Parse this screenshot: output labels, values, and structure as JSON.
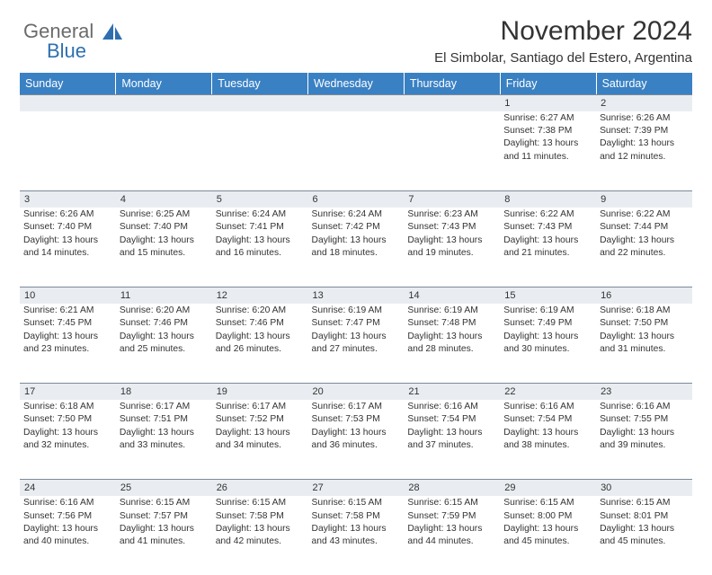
{
  "brand": {
    "part1": "General",
    "part2": "Blue"
  },
  "title": "November 2024",
  "subtitle": "El Simbolar, Santiago del Estero, Argentina",
  "colors": {
    "header_bg": "#3a81c4",
    "header_fg": "#ffffff",
    "daynum_bg": "#e9edf1",
    "daynum_border": "#7b8a99",
    "text": "#333333",
    "brand_grey": "#6b6b6b",
    "brand_blue": "#2f6fb0"
  },
  "weekdays": [
    "Sunday",
    "Monday",
    "Tuesday",
    "Wednesday",
    "Thursday",
    "Friday",
    "Saturday"
  ],
  "weeks": [
    [
      null,
      null,
      null,
      null,
      null,
      {
        "n": "1",
        "sr": "Sunrise: 6:27 AM",
        "ss": "Sunset: 7:38 PM",
        "d1": "Daylight: 13 hours",
        "d2": "and 11 minutes."
      },
      {
        "n": "2",
        "sr": "Sunrise: 6:26 AM",
        "ss": "Sunset: 7:39 PM",
        "d1": "Daylight: 13 hours",
        "d2": "and 12 minutes."
      }
    ],
    [
      {
        "n": "3",
        "sr": "Sunrise: 6:26 AM",
        "ss": "Sunset: 7:40 PM",
        "d1": "Daylight: 13 hours",
        "d2": "and 14 minutes."
      },
      {
        "n": "4",
        "sr": "Sunrise: 6:25 AM",
        "ss": "Sunset: 7:40 PM",
        "d1": "Daylight: 13 hours",
        "d2": "and 15 minutes."
      },
      {
        "n": "5",
        "sr": "Sunrise: 6:24 AM",
        "ss": "Sunset: 7:41 PM",
        "d1": "Daylight: 13 hours",
        "d2": "and 16 minutes."
      },
      {
        "n": "6",
        "sr": "Sunrise: 6:24 AM",
        "ss": "Sunset: 7:42 PM",
        "d1": "Daylight: 13 hours",
        "d2": "and 18 minutes."
      },
      {
        "n": "7",
        "sr": "Sunrise: 6:23 AM",
        "ss": "Sunset: 7:43 PM",
        "d1": "Daylight: 13 hours",
        "d2": "and 19 minutes."
      },
      {
        "n": "8",
        "sr": "Sunrise: 6:22 AM",
        "ss": "Sunset: 7:43 PM",
        "d1": "Daylight: 13 hours",
        "d2": "and 21 minutes."
      },
      {
        "n": "9",
        "sr": "Sunrise: 6:22 AM",
        "ss": "Sunset: 7:44 PM",
        "d1": "Daylight: 13 hours",
        "d2": "and 22 minutes."
      }
    ],
    [
      {
        "n": "10",
        "sr": "Sunrise: 6:21 AM",
        "ss": "Sunset: 7:45 PM",
        "d1": "Daylight: 13 hours",
        "d2": "and 23 minutes."
      },
      {
        "n": "11",
        "sr": "Sunrise: 6:20 AM",
        "ss": "Sunset: 7:46 PM",
        "d1": "Daylight: 13 hours",
        "d2": "and 25 minutes."
      },
      {
        "n": "12",
        "sr": "Sunrise: 6:20 AM",
        "ss": "Sunset: 7:46 PM",
        "d1": "Daylight: 13 hours",
        "d2": "and 26 minutes."
      },
      {
        "n": "13",
        "sr": "Sunrise: 6:19 AM",
        "ss": "Sunset: 7:47 PM",
        "d1": "Daylight: 13 hours",
        "d2": "and 27 minutes."
      },
      {
        "n": "14",
        "sr": "Sunrise: 6:19 AM",
        "ss": "Sunset: 7:48 PM",
        "d1": "Daylight: 13 hours",
        "d2": "and 28 minutes."
      },
      {
        "n": "15",
        "sr": "Sunrise: 6:19 AM",
        "ss": "Sunset: 7:49 PM",
        "d1": "Daylight: 13 hours",
        "d2": "and 30 minutes."
      },
      {
        "n": "16",
        "sr": "Sunrise: 6:18 AM",
        "ss": "Sunset: 7:50 PM",
        "d1": "Daylight: 13 hours",
        "d2": "and 31 minutes."
      }
    ],
    [
      {
        "n": "17",
        "sr": "Sunrise: 6:18 AM",
        "ss": "Sunset: 7:50 PM",
        "d1": "Daylight: 13 hours",
        "d2": "and 32 minutes."
      },
      {
        "n": "18",
        "sr": "Sunrise: 6:17 AM",
        "ss": "Sunset: 7:51 PM",
        "d1": "Daylight: 13 hours",
        "d2": "and 33 minutes."
      },
      {
        "n": "19",
        "sr": "Sunrise: 6:17 AM",
        "ss": "Sunset: 7:52 PM",
        "d1": "Daylight: 13 hours",
        "d2": "and 34 minutes."
      },
      {
        "n": "20",
        "sr": "Sunrise: 6:17 AM",
        "ss": "Sunset: 7:53 PM",
        "d1": "Daylight: 13 hours",
        "d2": "and 36 minutes."
      },
      {
        "n": "21",
        "sr": "Sunrise: 6:16 AM",
        "ss": "Sunset: 7:54 PM",
        "d1": "Daylight: 13 hours",
        "d2": "and 37 minutes."
      },
      {
        "n": "22",
        "sr": "Sunrise: 6:16 AM",
        "ss": "Sunset: 7:54 PM",
        "d1": "Daylight: 13 hours",
        "d2": "and 38 minutes."
      },
      {
        "n": "23",
        "sr": "Sunrise: 6:16 AM",
        "ss": "Sunset: 7:55 PM",
        "d1": "Daylight: 13 hours",
        "d2": "and 39 minutes."
      }
    ],
    [
      {
        "n": "24",
        "sr": "Sunrise: 6:16 AM",
        "ss": "Sunset: 7:56 PM",
        "d1": "Daylight: 13 hours",
        "d2": "and 40 minutes."
      },
      {
        "n": "25",
        "sr": "Sunrise: 6:15 AM",
        "ss": "Sunset: 7:57 PM",
        "d1": "Daylight: 13 hours",
        "d2": "and 41 minutes."
      },
      {
        "n": "26",
        "sr": "Sunrise: 6:15 AM",
        "ss": "Sunset: 7:58 PM",
        "d1": "Daylight: 13 hours",
        "d2": "and 42 minutes."
      },
      {
        "n": "27",
        "sr": "Sunrise: 6:15 AM",
        "ss": "Sunset: 7:58 PM",
        "d1": "Daylight: 13 hours",
        "d2": "and 43 minutes."
      },
      {
        "n": "28",
        "sr": "Sunrise: 6:15 AM",
        "ss": "Sunset: 7:59 PM",
        "d1": "Daylight: 13 hours",
        "d2": "and 44 minutes."
      },
      {
        "n": "29",
        "sr": "Sunrise: 6:15 AM",
        "ss": "Sunset: 8:00 PM",
        "d1": "Daylight: 13 hours",
        "d2": "and 45 minutes."
      },
      {
        "n": "30",
        "sr": "Sunrise: 6:15 AM",
        "ss": "Sunset: 8:01 PM",
        "d1": "Daylight: 13 hours",
        "d2": "and 45 minutes."
      }
    ]
  ]
}
